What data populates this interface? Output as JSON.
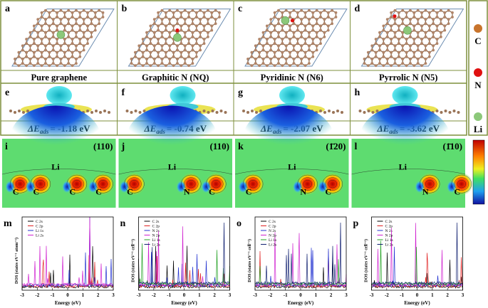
{
  "panels": [
    {
      "letter": "a",
      "caption": "Pure graphene"
    },
    {
      "letter": "b",
      "caption": "Graphitic N (NQ)"
    },
    {
      "letter": "c",
      "caption": "Pyridinic N (N6)"
    },
    {
      "letter": "d",
      "caption": "Pyrrolic N (N5)"
    }
  ],
  "atom_legend": [
    {
      "label": "C",
      "color": "#c8742c"
    },
    {
      "label": "N",
      "color": "#e01010"
    },
    {
      "label": "Li",
      "color": "#8cc87a"
    }
  ],
  "energies": [
    {
      "letter": "e",
      "symbol": "ΔE",
      "sub": "ads",
      "text": "= -1.18 eV"
    },
    {
      "letter": "f",
      "symbol": "ΔE",
      "sub": "ads",
      "text": "= -0.74 eV"
    },
    {
      "letter": "g",
      "symbol": "ΔE",
      "sub": "ads",
      "text": "= -2.07 eV"
    },
    {
      "letter": "h",
      "symbol": "ΔE",
      "sub": "ads",
      "text": "= -3.62 eV"
    }
  ],
  "maps": [
    {
      "letter": "i",
      "facet": "(110)",
      "atoms": [
        "Li",
        "C",
        "C",
        "C",
        "C"
      ]
    },
    {
      "letter": "j",
      "facet": "(110)",
      "atoms": [
        "Li",
        "C",
        "N",
        "C"
      ]
    },
    {
      "letter": "k",
      "facet": "(1̄20)",
      "atoms": [
        "Li",
        "C",
        "N",
        "C"
      ]
    },
    {
      "letter": "l",
      "facet": "(1̄10)",
      "atoms": [
        "Li",
        "N",
        "C"
      ]
    }
  ],
  "dos": [
    {
      "letter": "m",
      "ylabel": "DOS (states eV⁻¹ atom⁻¹)",
      "xlabel": "Energy (eV)",
      "xticks": [
        "-3",
        "-2",
        "-1",
        "0",
        "1",
        "2",
        "3"
      ],
      "legend": [
        {
          "name": "C 2s",
          "color": "#000000"
        },
        {
          "name": "C 2p",
          "color": "#e02020"
        },
        {
          "name": "Li 1s",
          "color": "#2030d0"
        },
        {
          "name": "Li 2s",
          "color": "#d020d0"
        }
      ]
    },
    {
      "letter": "n",
      "ylabel": "DOS (states eV⁻¹ cell⁻¹)",
      "xlabel": "Energy (eV)",
      "xticks": [
        "-3",
        "-2",
        "-1",
        "0",
        "1",
        "2",
        "3"
      ],
      "legend": [
        {
          "name": "C 2s",
          "color": "#000000"
        },
        {
          "name": "C 2p",
          "color": "#e02020"
        },
        {
          "name": "N 2s",
          "color": "#2030d0"
        },
        {
          "name": "N 2p",
          "color": "#d020d0"
        },
        {
          "name": "Li 1s",
          "color": "#20a020"
        },
        {
          "name": "Li 2s",
          "color": "#102070"
        }
      ]
    },
    {
      "letter": "o",
      "ylabel": "DOS (states eV⁻¹ cell⁻¹)",
      "xlabel": "Energy (eV)",
      "xticks": [
        "-3",
        "-2",
        "-1",
        "0",
        "1",
        "2",
        "3"
      ],
      "legend": [
        {
          "name": "C 2s",
          "color": "#000000"
        },
        {
          "name": "C 2p",
          "color": "#e02020"
        },
        {
          "name": "N 2s",
          "color": "#2030d0"
        },
        {
          "name": "N 2p",
          "color": "#d020d0"
        },
        {
          "name": "Li 1s",
          "color": "#20a020"
        },
        {
          "name": "Li 2s",
          "color": "#102070"
        }
      ]
    },
    {
      "letter": "p",
      "ylabel": "DOS (states eV⁻¹ cell⁻¹)",
      "xlabel": "Energy (eV)",
      "xticks": [
        "-3",
        "-2",
        "-1",
        "0",
        "1",
        "2",
        "3"
      ],
      "legend": [
        {
          "name": "C 2s",
          "color": "#000000"
        },
        {
          "name": "C 2p",
          "color": "#e02020"
        },
        {
          "name": "N 2s",
          "color": "#2030d0"
        },
        {
          "name": "N 2p",
          "color": "#d020d0"
        },
        {
          "name": "Li 1s",
          "color": "#20a020"
        },
        {
          "name": "Li 2s",
          "color": "#102070"
        }
      ]
    }
  ]
}
